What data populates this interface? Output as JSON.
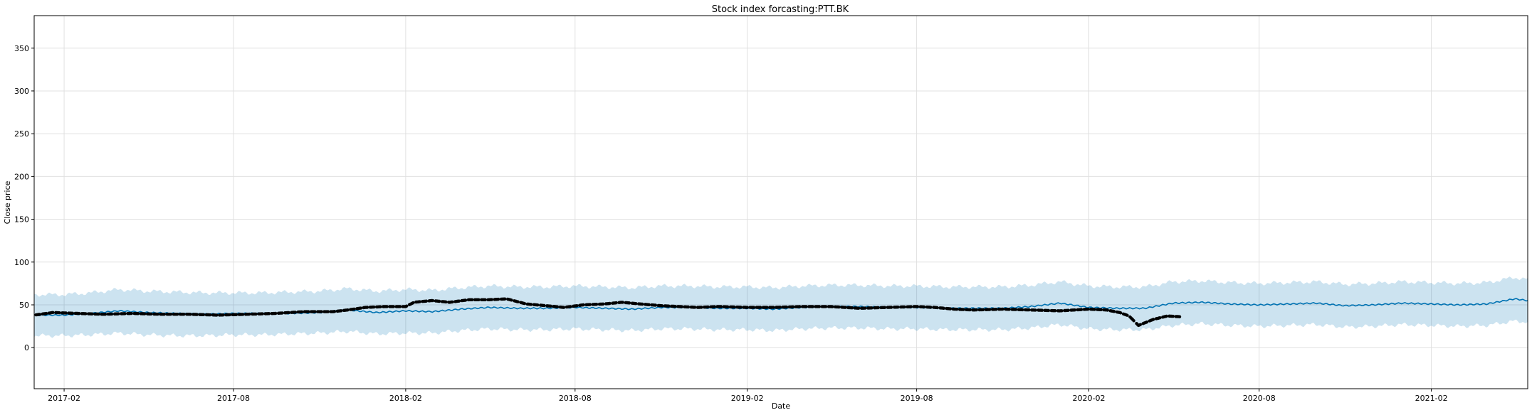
{
  "chart_data": {
    "type": "line",
    "title": "Stock index forcasting:PTT.BK",
    "xlabel": "Date",
    "ylabel": "Close price",
    "xlim": [
      "2016-12-31",
      "2021-05-15"
    ],
    "ylim": [
      -48,
      388
    ],
    "grid": true,
    "x_ticks": [
      "2017-02",
      "2017-08",
      "2018-02",
      "2018-08",
      "2019-02",
      "2019-08",
      "2020-02",
      "2020-08",
      "2021-02"
    ],
    "y_ticks": [
      0,
      50,
      100,
      150,
      200,
      250,
      300,
      350
    ],
    "colors": {
      "forecast": "#0072B2",
      "interval": "#0072B2",
      "observed": "#000000",
      "grid": "#e0e0e0"
    },
    "series": [
      {
        "kind": "forecast",
        "x": [
          "2016-12-31",
          "2017-02-01",
          "2017-03-01",
          "2017-04-01",
          "2017-05-01",
          "2017-06-01",
          "2017-07-01",
          "2017-08-01",
          "2017-09-01",
          "2017-10-01",
          "2017-11-01",
          "2017-12-01",
          "2018-01-01",
          "2018-02-01",
          "2018-03-01",
          "2018-04-01",
          "2018-05-01",
          "2018-06-01",
          "2018-07-01",
          "2018-08-01",
          "2018-09-01",
          "2018-10-01",
          "2018-11-01",
          "2018-12-01",
          "2019-01-01",
          "2019-02-01",
          "2019-03-01",
          "2019-04-01",
          "2019-05-01",
          "2019-06-01",
          "2019-07-01",
          "2019-08-01",
          "2019-09-01",
          "2019-10-01",
          "2019-11-01",
          "2019-12-01",
          "2020-01-01",
          "2020-02-01",
          "2020-03-01",
          "2020-04-01",
          "2020-05-01",
          "2020-06-01",
          "2020-07-01",
          "2020-08-01",
          "2020-09-01",
          "2020-10-01",
          "2020-11-01",
          "2020-12-01",
          "2021-01-01",
          "2021-02-01",
          "2021-03-01",
          "2021-04-01",
          "2021-05-01",
          "2021-05-15"
        ],
        "yhat": [
          38,
          38,
          40,
          43,
          41,
          40,
          39,
          40,
          40,
          40,
          41,
          44,
          41,
          43,
          42,
          45,
          47,
          46,
          46,
          47,
          46,
          45,
          47,
          47,
          46,
          46,
          45,
          47,
          48,
          48,
          47,
          47,
          46,
          46,
          46,
          48,
          52,
          47,
          46,
          46,
          52,
          53,
          51,
          50,
          51,
          52,
          49,
          50,
          52,
          51,
          50,
          51,
          57,
          55
        ],
        "yhat_lower": [
          14,
          14,
          15,
          17,
          15,
          14,
          14,
          15,
          15,
          16,
          17,
          19,
          16,
          17,
          17,
          20,
          22,
          21,
          21,
          22,
          21,
          20,
          22,
          22,
          21,
          21,
          20,
          22,
          23,
          23,
          22,
          22,
          21,
          21,
          21,
          23,
          27,
          22,
          21,
          21,
          26,
          28,
          26,
          25,
          26,
          27,
          24,
          25,
          27,
          26,
          25,
          26,
          31,
          30
        ],
        "yhat_upper": [
          62,
          62,
          64,
          68,
          66,
          65,
          64,
          64,
          64,
          65,
          66,
          69,
          66,
          68,
          67,
          70,
          72,
          71,
          71,
          72,
          71,
          70,
          72,
          72,
          71,
          71,
          70,
          72,
          73,
          73,
          72,
          72,
          71,
          71,
          71,
          73,
          77,
          72,
          71,
          71,
          77,
          78,
          76,
          75,
          76,
          77,
          74,
          75,
          77,
          76,
          75,
          76,
          82,
          80
        ]
      },
      {
        "kind": "observed",
        "x": [
          "2016-12-31",
          "2017-01-20",
          "2017-02-15",
          "2017-03-15",
          "2017-04-15",
          "2017-05-15",
          "2017-06-15",
          "2017-07-15",
          "2017-08-15",
          "2017-09-15",
          "2017-10-15",
          "2017-11-15",
          "2017-12-01",
          "2017-12-20",
          "2018-01-10",
          "2018-02-01",
          "2018-02-10",
          "2018-03-01",
          "2018-03-20",
          "2018-04-10",
          "2018-05-01",
          "2018-05-20",
          "2018-06-10",
          "2018-07-01",
          "2018-07-20",
          "2018-08-10",
          "2018-09-01",
          "2018-09-20",
          "2018-10-10",
          "2018-11-01",
          "2018-11-20",
          "2018-12-10",
          "2019-01-01",
          "2019-02-01",
          "2019-03-01",
          "2019-04-01",
          "2019-05-01",
          "2019-06-01",
          "2019-07-01",
          "2019-08-01",
          "2019-08-20",
          "2019-09-10",
          "2019-10-01",
          "2019-11-01",
          "2019-12-01",
          "2020-01-01",
          "2020-02-01",
          "2020-02-20",
          "2020-03-05",
          "2020-03-15",
          "2020-03-25",
          "2020-04-10",
          "2020-04-25",
          "2020-05-10"
        ],
        "y": [
          38,
          41,
          40,
          39,
          40,
          39,
          39,
          38,
          39,
          40,
          42,
          42,
          44,
          47,
          48,
          48,
          53,
          55,
          53,
          56,
          56,
          57,
          51,
          49,
          47,
          50,
          51,
          53,
          51,
          49,
          48,
          47,
          48,
          47,
          47,
          48,
          48,
          46,
          47,
          48,
          47,
          45,
          44,
          45,
          44,
          43,
          45,
          44,
          41,
          37,
          26,
          33,
          37,
          36
        ]
      }
    ]
  }
}
